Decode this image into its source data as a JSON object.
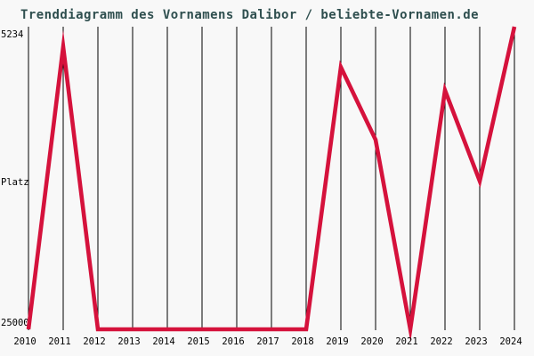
{
  "title": "Trenddiagramm des Vornamens Dalibor / beliebte-Vornamen.de",
  "y_axis": {
    "top_label": "5234",
    "axis_title": "Platz",
    "bottom_label": "25000"
  },
  "colors": {
    "background": "#f8f8f8",
    "title_text": "#2f4f4f",
    "tick_text": "#000000",
    "grid_line": "#000000",
    "trend_line": "#d5123c"
  },
  "chart_data": {
    "type": "line",
    "title": "Trenddiagramm des Vornamens Dalibor / beliebte-Vornamen.de",
    "x": [
      "2010",
      "2011",
      "2012",
      "2013",
      "2014",
      "2015",
      "2016",
      "2017",
      "2018",
      "2019",
      "2020",
      "2021",
      "2022",
      "2023",
      "2024"
    ],
    "series": [
      {
        "name": "Platz",
        "values": [
          25000,
          6550,
          25000,
          25000,
          25000,
          25000,
          25000,
          25000,
          25000,
          7880,
          12620,
          25000,
          9390,
          15320,
          5234
        ]
      }
    ],
    "xlabel": "",
    "ylabel": "Platz",
    "ylim": [
      5234,
      25000
    ],
    "y_axis_inverted": true,
    "grid": "vertical-only",
    "legend": "none"
  }
}
